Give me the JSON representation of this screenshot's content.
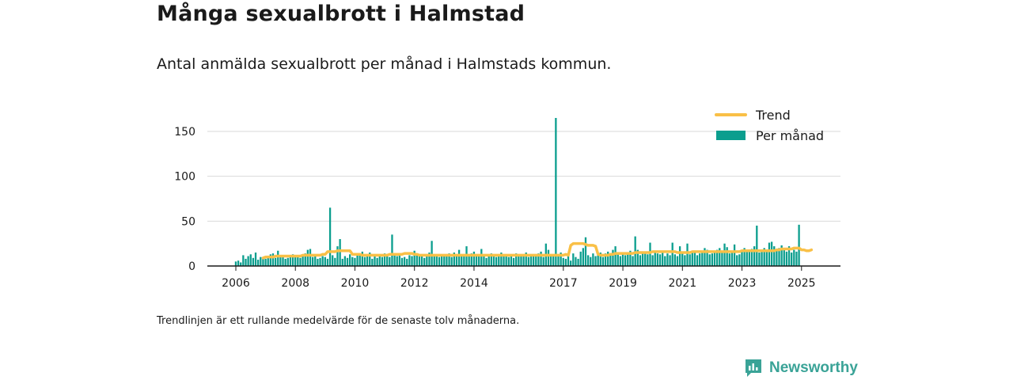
{
  "header": {
    "title": "Många sexualbrott i Halmstad",
    "subtitle": "Antal anmälda sexualbrott per månad i Halmstads kommun."
  },
  "footer": {
    "note": "Trendlinjen är ett rullande medelvärde för de senaste tolv månaderna.",
    "brand": "Newsworthy"
  },
  "colors": {
    "bars": "#0b9e8e",
    "trend": "#f9c047",
    "grid": "#d9d9d9",
    "axis": "#1a1a1a",
    "brand": "#3aa397"
  },
  "chart_data": {
    "type": "bar",
    "title": "Många sexualbrott i Halmstad",
    "subtitle": "Antal anmälda sexualbrott per månad i Halmstads kommun.",
    "xlabel": "",
    "ylabel": "",
    "x_range": [
      "2006-01",
      "2025-12"
    ],
    "ylim": [
      0,
      175
    ],
    "y_ticks": [
      0,
      50,
      100,
      150
    ],
    "x_ticks": [
      "2006",
      "2008",
      "2010",
      "2012",
      "2014",
      "2017",
      "2019",
      "2021",
      "2023",
      "2025"
    ],
    "x_tick_dates": [
      "2006-01",
      "2008-01",
      "2010-01",
      "2012-01",
      "2014-01",
      "2017-01",
      "2019-01",
      "2021-01",
      "2023-01",
      "2025-01"
    ],
    "grid": true,
    "legend_position": "top-right",
    "series": [
      {
        "name": "Per månad",
        "kind": "bar",
        "start": "2006-01",
        "values": [
          5,
          6,
          4,
          12,
          8,
          11,
          13,
          9,
          15,
          7,
          10,
          9,
          8,
          11,
          13,
          14,
          9,
          17,
          10,
          11,
          8,
          9,
          12,
          13,
          10,
          11,
          9,
          12,
          14,
          18,
          19,
          10,
          12,
          8,
          9,
          11,
          10,
          8,
          65,
          12,
          9,
          22,
          30,
          8,
          11,
          9,
          13,
          10,
          9,
          14,
          12,
          16,
          10,
          13,
          15,
          8,
          11,
          9,
          12,
          10,
          14,
          13,
          10,
          35,
          12,
          11,
          13,
          9,
          10,
          8,
          12,
          11,
          17,
          14,
          12,
          11,
          9,
          13,
          15,
          28,
          11,
          12,
          10,
          13,
          12,
          11,
          14,
          10,
          15,
          12,
          18,
          13,
          11,
          22,
          12,
          14,
          16,
          11,
          13,
          19,
          12,
          9,
          11,
          14,
          13,
          10,
          12,
          15,
          11,
          13,
          10,
          12,
          9,
          14,
          12,
          13,
          11,
          15,
          10,
          12,
          13,
          11,
          14,
          16,
          10,
          25,
          18,
          12,
          11,
          165,
          13,
          15,
          9,
          8,
          12,
          6,
          14,
          10,
          8,
          16,
          20,
          32,
          12,
          10,
          14,
          11,
          13,
          15,
          10,
          14,
          16,
          12,
          18,
          22,
          13,
          11,
          15,
          12,
          14,
          17,
          11,
          33,
          18,
          12,
          16,
          14,
          13,
          26,
          12,
          17,
          14,
          13,
          15,
          11,
          14,
          12,
          26,
          13,
          11,
          22,
          14,
          12,
          25,
          13,
          15,
          16,
          12,
          14,
          17,
          20,
          18,
          13,
          14,
          16,
          18,
          20,
          17,
          25,
          21,
          14,
          16,
          24,
          12,
          13,
          18,
          20,
          17,
          16,
          19,
          22,
          45,
          15,
          18,
          20,
          16,
          26,
          27,
          22,
          18,
          20,
          23,
          19,
          16,
          22,
          15,
          18,
          16,
          46
        ]
      },
      {
        "name": "Trend",
        "kind": "line",
        "start": "2006-12",
        "values": [
          9,
          10,
          10,
          10,
          10,
          11,
          11,
          11,
          11,
          11,
          11,
          11,
          11,
          11,
          11,
          11,
          12,
          12,
          12,
          12,
          12,
          12,
          12,
          12,
          13,
          13,
          16,
          16,
          16,
          16,
          17,
          17,
          17,
          17,
          17,
          17,
          13,
          13,
          13,
          13,
          12,
          12,
          12,
          12,
          12,
          12,
          12,
          12,
          12,
          12,
          12,
          13,
          13,
          13,
          13,
          13,
          13,
          14,
          14,
          14,
          14,
          13,
          13,
          12,
          12,
          12,
          12,
          12,
          12,
          12,
          12,
          12,
          12,
          12,
          12,
          12,
          12,
          12,
          12,
          12,
          12,
          12,
          12,
          12,
          12,
          12,
          12,
          12,
          12,
          12,
          12,
          12,
          12,
          12,
          12,
          12,
          12,
          12,
          12,
          12,
          12,
          12,
          12,
          12,
          12,
          12,
          12,
          12,
          12,
          12,
          12,
          12,
          12,
          12,
          12,
          12,
          12,
          12,
          12,
          12,
          12,
          12,
          13,
          12,
          23,
          25,
          25,
          25,
          25,
          25,
          24,
          23,
          23,
          23,
          22,
          13,
          12,
          12,
          12,
          12,
          13,
          13,
          14,
          14,
          14,
          14,
          14,
          14,
          14,
          14,
          15,
          15,
          15,
          15,
          15,
          15,
          15,
          16,
          16,
          16,
          16,
          16,
          16,
          16,
          16,
          16,
          16,
          15,
          15,
          15,
          15,
          15,
          15,
          16,
          16,
          16,
          16,
          16,
          16,
          16,
          16,
          16,
          16,
          16,
          16,
          16,
          16,
          16,
          16,
          16,
          16,
          16,
          16,
          17,
          17,
          17,
          17,
          17,
          17,
          17,
          17,
          17,
          17,
          17,
          17,
          17,
          17,
          18,
          18,
          19,
          19,
          19,
          19,
          19,
          20,
          20,
          20,
          18,
          18,
          17,
          17,
          18
        ]
      }
    ]
  }
}
